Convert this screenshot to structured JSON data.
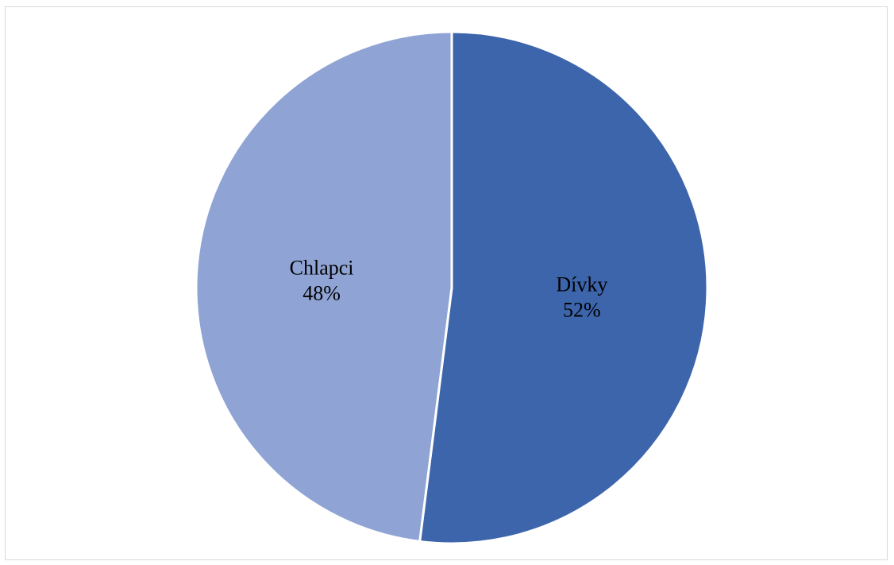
{
  "chart_data": {
    "type": "pie",
    "slices": [
      {
        "label": "Dívky",
        "value": 52,
        "percent_label": "52%",
        "color": "#3d65ab"
      },
      {
        "label": "Chlapci",
        "value": 48,
        "percent_label": "48%",
        "color": "#8fa4d4"
      }
    ],
    "start_angle": "12 o'clock",
    "direction": "clockwise",
    "slice_border_color": "#ffffff",
    "legend": "none"
  }
}
